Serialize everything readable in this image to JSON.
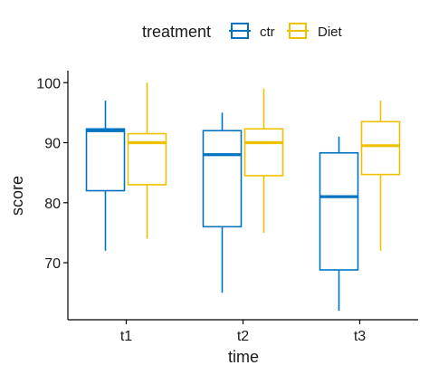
{
  "chart_data": {
    "type": "boxplot",
    "xlabel": "time",
    "ylabel": "score",
    "categories": [
      "t1",
      "t2",
      "t3"
    ],
    "ylim": [
      60.5,
      102
    ],
    "yticks": [
      70,
      80,
      90,
      100
    ],
    "legend": {
      "title": "treatment",
      "position": "top"
    },
    "grid": false,
    "series": [
      {
        "name": "ctr",
        "color": "#0073C2",
        "boxes": [
          {
            "category": "t1",
            "min": 72,
            "q1": 82,
            "median": 92,
            "q3": 92.3,
            "max": 97
          },
          {
            "category": "t2",
            "min": 65,
            "q1": 76,
            "median": 88,
            "q3": 92,
            "max": 95
          },
          {
            "category": "t3",
            "min": 62,
            "q1": 68.8,
            "median": 81,
            "q3": 88.3,
            "max": 91
          }
        ]
      },
      {
        "name": "Diet",
        "color": "#EFC000",
        "boxes": [
          {
            "category": "t1",
            "min": 74,
            "q1": 83,
            "median": 90,
            "q3": 91.5,
            "max": 100
          },
          {
            "category": "t2",
            "min": 75,
            "q1": 84.5,
            "median": 90,
            "q3": 92.3,
            "max": 99
          },
          {
            "category": "t3",
            "min": 72,
            "q1": 84.7,
            "median": 89.5,
            "q3": 93.5,
            "max": 97
          }
        ]
      }
    ]
  }
}
